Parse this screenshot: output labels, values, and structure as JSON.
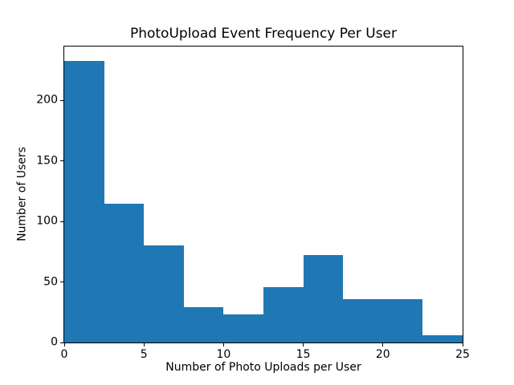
{
  "figure": {
    "background_color": "#ffffff",
    "axis_color": "#000000",
    "text_color": "#000000"
  },
  "chart_data": {
    "type": "bar",
    "subtype": "histogram",
    "title": "PhotoUpload Event Frequency Per User",
    "xlabel": "Number of Photo Uploads per User",
    "ylabel": "Number of Users",
    "bin_edges": [
      0,
      2.5,
      5,
      7.5,
      10,
      12.5,
      15,
      17.5,
      20,
      22.5,
      25
    ],
    "counts": [
      233,
      115,
      80,
      29,
      23,
      46,
      72,
      36,
      36,
      6
    ],
    "xticks": [
      0,
      5,
      10,
      15,
      20,
      25
    ],
    "yticks": [
      0,
      50,
      100,
      150,
      200
    ],
    "xlim": [
      0,
      25
    ],
    "ylim": [
      0,
      244.65
    ],
    "bar_color": "#1f77b4",
    "grid": false,
    "legend_position": "none"
  }
}
